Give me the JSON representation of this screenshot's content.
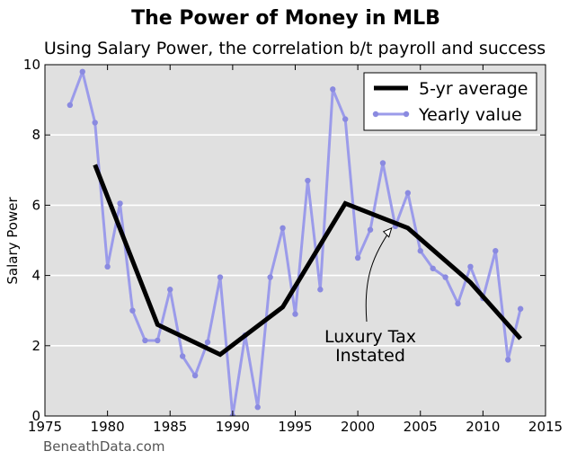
{
  "chart_data": {
    "type": "line",
    "title": "The Power of Money in MLB",
    "subtitle": "Using Salary Power, the correlation b/t payroll and success",
    "xlabel": "",
    "ylabel": "Salary Power",
    "xlim": [
      1975,
      2015
    ],
    "ylim": [
      0,
      10
    ],
    "xticks": [
      1975,
      1980,
      1985,
      1990,
      1995,
      2000,
      2005,
      2010,
      2015
    ],
    "yticks": [
      0,
      2,
      4,
      6,
      8,
      10
    ],
    "grid": "horizontal white lines",
    "background": "#e0e0e0",
    "legend_placement": "top-right",
    "series": [
      {
        "name": "5-yr average",
        "color": "#000000",
        "x": [
          1979,
          1984,
          1989,
          1994,
          1999,
          2004,
          2009,
          2013
        ],
        "y": [
          7.15,
          2.6,
          1.75,
          3.1,
          6.05,
          5.35,
          3.8,
          2.2
        ]
      },
      {
        "name": "Yearly value",
        "color": "#9b9bea",
        "x": [
          1977,
          1978,
          1979,
          1980,
          1981,
          1982,
          1983,
          1984,
          1985,
          1986,
          1987,
          1988,
          1989,
          1990,
          1991,
          1992,
          1993,
          1994,
          1995,
          1996,
          1997,
          1998,
          1999,
          2000,
          2001,
          2002,
          2003,
          2004,
          2005,
          2006,
          2007,
          2008,
          2009,
          2010,
          2011,
          2012,
          2013
        ],
        "y": [
          8.85,
          9.8,
          8.35,
          4.25,
          6.05,
          3.0,
          2.15,
          2.15,
          3.6,
          1.7,
          1.15,
          2.1,
          3.95,
          0.0,
          2.3,
          0.25,
          3.95,
          5.35,
          2.9,
          6.7,
          3.6,
          9.3,
          8.45,
          4.5,
          5.3,
          7.2,
          5.4,
          6.35,
          4.7,
          4.2,
          3.95,
          3.2,
          4.25,
          3.35,
          4.7,
          1.6,
          3.05
        ]
      }
    ],
    "annotation": {
      "lines": [
        "Luxury Tax",
        "Instated"
      ],
      "arrow_target": {
        "x": 2002.7,
        "y": 5.35
      }
    }
  },
  "watermark": "BeneathData.com"
}
